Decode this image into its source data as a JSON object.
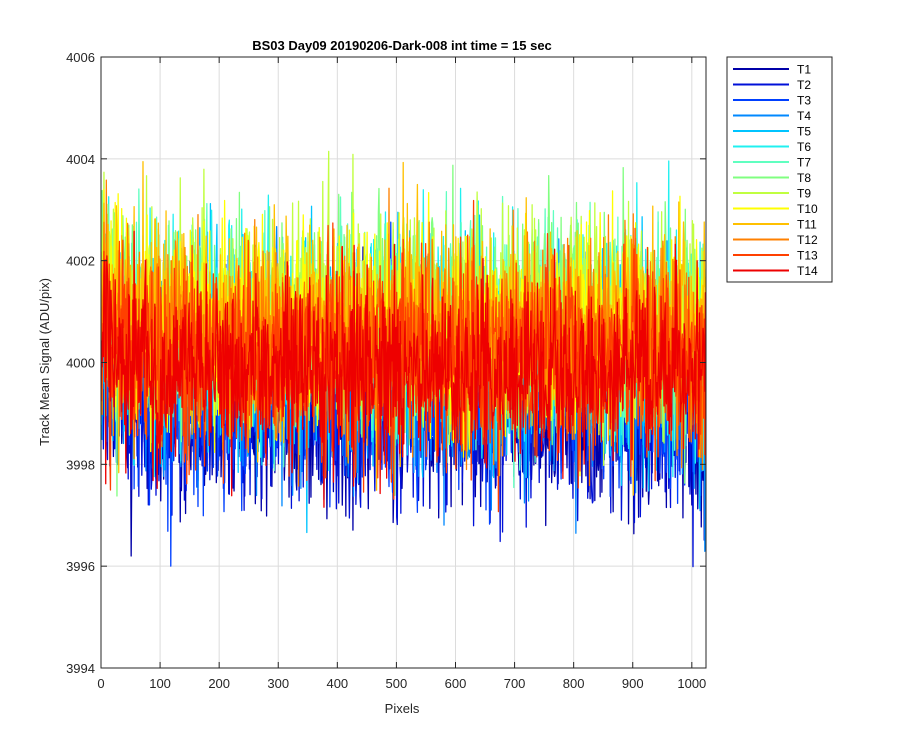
{
  "chart_data": {
    "type": "line",
    "title": "BS03 Day09 20190206-Dark-008 int time = 15 sec",
    "xlabel": "Pixels",
    "ylabel": "Track Mean Signal (ADU/pix)",
    "xlim": [
      0,
      1024
    ],
    "ylim": [
      3994,
      4006
    ],
    "xticks": [
      0,
      100,
      200,
      300,
      400,
      500,
      600,
      700,
      800,
      900,
      1000
    ],
    "yticks": [
      3994,
      3996,
      3998,
      4000,
      4002,
      4004,
      4006
    ],
    "grid": true,
    "legend_position": "outside-top-right",
    "n_points": 1024,
    "series": [
      {
        "name": "T1",
        "color": "#0000a8",
        "center": 3999.0,
        "spread": 0.9,
        "max": 4003.5,
        "min": 3994.6
      },
      {
        "name": "T2",
        "color": "#0010d8",
        "center": 3999.1,
        "spread": 0.9,
        "max": 4003.2,
        "min": 3995.1
      },
      {
        "name": "T3",
        "color": "#0040ff",
        "center": 3999.4,
        "spread": 0.9,
        "max": 4003.6,
        "min": 3996.0
      },
      {
        "name": "T4",
        "color": "#0088ff",
        "center": 3999.9,
        "spread": 1.0,
        "max": 4004.9,
        "min": 3995.8
      },
      {
        "name": "T5",
        "color": "#00c4ff",
        "center": 4000.3,
        "spread": 1.0,
        "max": 4004.9,
        "min": 3996.6
      },
      {
        "name": "T6",
        "color": "#20f0f0",
        "center": 4000.6,
        "spread": 1.0,
        "max": 4004.8,
        "min": 3997.0
      },
      {
        "name": "T7",
        "color": "#60ffc0",
        "center": 4000.7,
        "spread": 1.0,
        "max": 4004.6,
        "min": 3997.0
      },
      {
        "name": "T8",
        "color": "#80ff80",
        "center": 4000.8,
        "spread": 1.0,
        "max": 4004.8,
        "min": 3997.2
      },
      {
        "name": "T9",
        "color": "#c0ff40",
        "center": 4000.8,
        "spread": 1.0,
        "max": 4004.4,
        "min": 3997.0
      },
      {
        "name": "T10",
        "color": "#ffff00",
        "center": 4000.7,
        "spread": 1.0,
        "max": 4004.0,
        "min": 3996.6
      },
      {
        "name": "T11",
        "color": "#ffc000",
        "center": 4000.6,
        "spread": 1.0,
        "max": 4004.0,
        "min": 3996.4
      },
      {
        "name": "T12",
        "color": "#ff8000",
        "center": 4000.4,
        "spread": 1.0,
        "max": 4003.9,
        "min": 3996.8
      },
      {
        "name": "T13",
        "color": "#ff4000",
        "center": 4000.1,
        "spread": 0.95,
        "max": 4003.2,
        "min": 3996.1
      },
      {
        "name": "T14",
        "color": "#ee0000",
        "center": 3999.9,
        "spread": 0.9,
        "max": 4002.6,
        "min": 3996.5
      }
    ]
  }
}
